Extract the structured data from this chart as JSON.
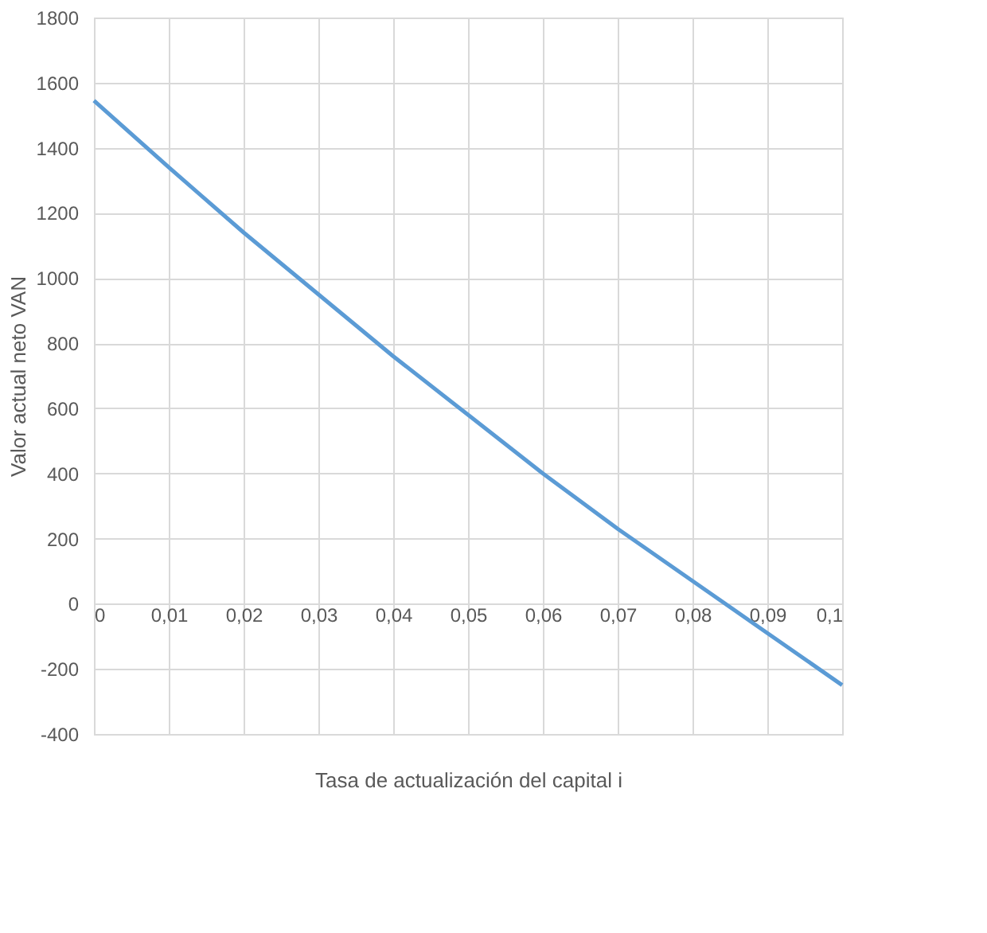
{
  "chart_data": {
    "type": "line",
    "xlabel": "Tasa de actualización del capital i",
    "ylabel": "Valor actual neto VAN",
    "x": [
      0,
      0.01,
      0.02,
      0.03,
      0.04,
      0.05,
      0.06,
      0.07,
      0.08,
      0.09,
      0.1
    ],
    "series": [
      {
        "color": "#5b9bd5",
        "values": [
          1545,
          1340,
          1140,
          950,
          760,
          580,
          400,
          230,
          70,
          -90,
          -250
        ]
      }
    ],
    "xlim": [
      0,
      0.1
    ],
    "ylim": [
      -400,
      1800
    ],
    "xticks": [
      0,
      {
        "value": 0.01,
        "label": "0,01"
      },
      {
        "value": 0.02,
        "label": "0,02"
      },
      {
        "value": 0.03,
        "label": "0,03"
      },
      {
        "value": 0.04,
        "label": "0,04"
      },
      {
        "value": 0.05,
        "label": "0,05"
      },
      {
        "value": 0.06,
        "label": "0,06"
      },
      {
        "value": 0.07,
        "label": "0,07"
      },
      {
        "value": 0.08,
        "label": "0,08"
      },
      {
        "value": 0.09,
        "label": "0,09"
      },
      {
        "value": 0.1,
        "label": "0,1"
      }
    ],
    "yticks": [
      -400,
      -200,
      0,
      200,
      400,
      600,
      800,
      1000,
      1200,
      1400,
      1600,
      1800
    ],
    "grid": true,
    "marker": "none",
    "line_style": "solid"
  }
}
